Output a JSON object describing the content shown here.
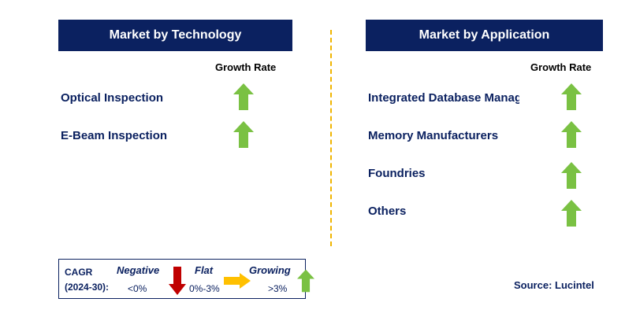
{
  "technology": {
    "title": "Market by Technology",
    "growth_label": "Growth Rate",
    "items": [
      {
        "label": "Optical Inspection",
        "trend": "growing"
      },
      {
        "label": "E-Beam Inspection",
        "trend": "growing"
      }
    ]
  },
  "application": {
    "title": "Market by Application",
    "growth_label": "Growth Rate",
    "items": [
      {
        "label": "Integrated Database Management",
        "trend": "growing"
      },
      {
        "label": "Memory Manufacturers",
        "trend": "growing"
      },
      {
        "label": "Foundries",
        "trend": "growing"
      },
      {
        "label": "Others",
        "trend": "growing"
      }
    ]
  },
  "legend": {
    "cagr_line1": "CAGR",
    "cagr_line2": "(2024-30):",
    "negative_label": "Negative",
    "negative_range": "<0%",
    "flat_label": "Flat",
    "flat_range": "0%-3%",
    "growing_label": "Growing",
    "growing_range": ">3%"
  },
  "source": "Source: Lucintel",
  "colors": {
    "header_bg": "#0b2160",
    "text_navy": "#0b2160",
    "growing_arrow": "#7ac143",
    "negative_arrow": "#c00000",
    "flat_arrow": "#ffc000",
    "divider": "#f0b400"
  }
}
